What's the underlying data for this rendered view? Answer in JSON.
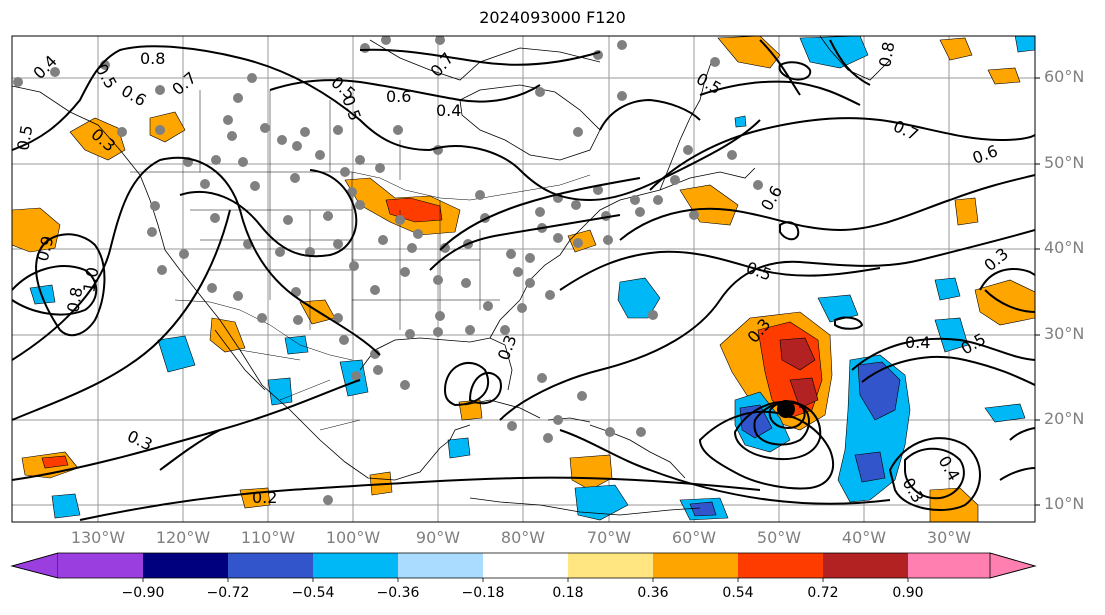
{
  "title": "2024093000 F120",
  "map": {
    "projection": "PlateCarree",
    "lon_range": [
      -140,
      -20
    ],
    "lat_range": [
      7,
      65
    ],
    "lat_labels": [
      {
        "lat": 60,
        "text": "60°N"
      },
      {
        "lat": 50,
        "text": "50°N"
      },
      {
        "lat": 40,
        "text": "40°N"
      },
      {
        "lat": 30,
        "text": "30°N"
      },
      {
        "lat": 20,
        "text": "20°N"
      },
      {
        "lat": 10,
        "text": "10°N"
      }
    ],
    "lon_labels": [
      {
        "lon": -130,
        "text": "130°W"
      },
      {
        "lon": -120,
        "text": "120°W"
      },
      {
        "lon": -110,
        "text": "110°W"
      },
      {
        "lon": -100,
        "text": "100°W"
      },
      {
        "lon": -90,
        "text": "90°W"
      },
      {
        "lon": -80,
        "text": "80°W"
      },
      {
        "lon": -70,
        "text": "70°W"
      },
      {
        "lon": -60,
        "text": "60°W"
      },
      {
        "lon": -50,
        "text": "50°W"
      },
      {
        "lon": -40,
        "text": "40°W"
      },
      {
        "lon": -30,
        "text": "30°W"
      }
    ],
    "contour_labels": [
      "0.4",
      "0.5",
      "0.8",
      "0.6",
      "0.7",
      "0.5",
      "0.6",
      "0.4",
      "0.3",
      "0.7",
      "0.5",
      "0.8",
      "0.5",
      "0.7",
      "0.6",
      "0.6",
      "0.5",
      "0.3",
      "0.4",
      "0.5",
      "0.3",
      "0.2",
      "0.3",
      "0.9",
      "1.0",
      "0.8",
      "0.5",
      "0.3",
      "0.4",
      "0.3"
    ],
    "storm_center": {
      "lon": -49.8,
      "lat": 21
    }
  },
  "colorbar": {
    "levels": [
      "−0.90",
      "−0.72",
      "−0.54",
      "−0.36",
      "−0.18",
      "0.18",
      "0.36",
      "0.54",
      "0.72",
      "0.90"
    ],
    "colors": [
      "#9a3ee0",
      "#00007f",
      "#3355cc",
      "#00b8f5",
      "#aadcff",
      "#ffffff",
      "#ffe680",
      "#ffa500",
      "#ff3c00",
      "#b22222",
      "#ff80b0"
    ]
  },
  "colors": {
    "orange": "#ffa500",
    "red": "#ff3c00",
    "darkred": "#b22222",
    "cyan": "#00b8f5",
    "blue": "#3355cc",
    "stations": "#808080"
  }
}
